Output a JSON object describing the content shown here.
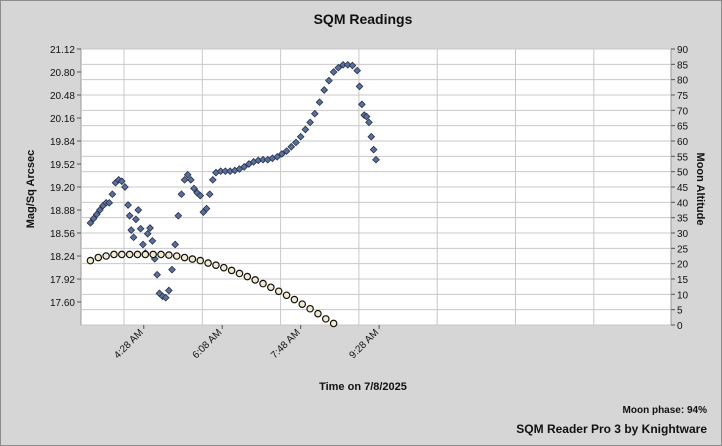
{
  "chart_data": {
    "type": "scatter",
    "title": "SQM Readings",
    "xlabel": "Time on 7/8/2025",
    "ylabel": "Mag/Sq Arcsec",
    "y2label": "Moon Altitude",
    "x_ticks": [
      "4:28 AM",
      "6:08 AM",
      "7:48 AM",
      "9:28 AM"
    ],
    "y_ticks": [
      "21.12",
      "20.80",
      "20.48",
      "20.16",
      "19.84",
      "19.52",
      "19.20",
      "18.88",
      "18.56",
      "18.24",
      "17.92",
      "17.60"
    ],
    "y2_ticks": [
      "90",
      "85",
      "80",
      "75",
      "70",
      "65",
      "60",
      "55",
      "50",
      "45",
      "40",
      "35",
      "30",
      "25",
      "20",
      "15",
      "10",
      "5",
      "0"
    ],
    "ylim": [
      17.28,
      21.12
    ],
    "y2lim": [
      0,
      90
    ],
    "x_unit": "minutes after midnight",
    "xlim": [
      188,
      940
    ],
    "grid": true,
    "series": [
      {
        "marker": "diamond",
        "color": "#5b6f9a",
        "axis": "left",
        "points": [
          [
            200,
            18.7
          ],
          [
            204,
            18.76
          ],
          [
            208,
            18.82
          ],
          [
            212,
            18.88
          ],
          [
            216,
            18.94
          ],
          [
            220,
            18.98
          ],
          [
            224,
            18.98
          ],
          [
            228,
            19.1
          ],
          [
            232,
            19.26
          ],
          [
            236,
            19.3
          ],
          [
            240,
            19.28
          ],
          [
            244,
            19.2
          ],
          [
            248,
            18.95
          ],
          [
            250,
            18.8
          ],
          [
            252,
            18.6
          ],
          [
            255,
            18.5
          ],
          [
            258,
            18.75
          ],
          [
            261,
            18.88
          ],
          [
            264,
            18.62
          ],
          [
            267,
            18.4
          ],
          [
            270,
            18.28
          ],
          [
            273,
            18.55
          ],
          [
            276,
            18.63
          ],
          [
            279,
            18.45
          ],
          [
            282,
            18.2
          ],
          [
            285,
            17.98
          ],
          [
            288,
            17.72
          ],
          [
            292,
            17.68
          ],
          [
            296,
            17.66
          ],
          [
            300,
            17.76
          ],
          [
            304,
            18.05
          ],
          [
            308,
            18.4
          ],
          [
            312,
            18.8
          ],
          [
            316,
            19.1
          ],
          [
            320,
            19.3
          ],
          [
            324,
            19.37
          ],
          [
            328,
            19.3
          ],
          [
            332,
            19.18
          ],
          [
            336,
            19.12
          ],
          [
            340,
            19.08
          ],
          [
            344,
            18.85
          ],
          [
            348,
            18.9
          ],
          [
            352,
            19.1
          ],
          [
            356,
            19.3
          ],
          [
            360,
            19.4
          ],
          [
            366,
            19.42
          ],
          [
            372,
            19.42
          ],
          [
            378,
            19.42
          ],
          [
            384,
            19.43
          ],
          [
            390,
            19.45
          ],
          [
            396,
            19.48
          ],
          [
            402,
            19.52
          ],
          [
            408,
            19.55
          ],
          [
            414,
            19.57
          ],
          [
            420,
            19.58
          ],
          [
            426,
            19.58
          ],
          [
            432,
            19.6
          ],
          [
            438,
            19.62
          ],
          [
            444,
            19.66
          ],
          [
            450,
            19.7
          ],
          [
            456,
            19.76
          ],
          [
            462,
            19.82
          ],
          [
            468,
            19.9
          ],
          [
            474,
            20.0
          ],
          [
            480,
            20.1
          ],
          [
            486,
            20.22
          ],
          [
            492,
            20.38
          ],
          [
            498,
            20.55
          ],
          [
            504,
            20.68
          ],
          [
            510,
            20.8
          ],
          [
            516,
            20.86
          ],
          [
            522,
            20.9
          ],
          [
            528,
            20.9
          ],
          [
            534,
            20.89
          ],
          [
            540,
            20.82
          ],
          [
            543,
            20.6
          ],
          [
            546,
            20.35
          ],
          [
            549,
            20.2
          ],
          [
            552,
            20.18
          ],
          [
            555,
            20.1
          ],
          [
            558,
            19.9
          ],
          [
            561,
            19.72
          ],
          [
            564,
            19.58
          ]
        ]
      },
      {
        "marker": "circle",
        "color": "#f3ead0",
        "axis": "right",
        "points": [
          [
            200,
            21
          ],
          [
            210,
            22
          ],
          [
            220,
            22.5
          ],
          [
            230,
            23
          ],
          [
            240,
            23
          ],
          [
            250,
            23
          ],
          [
            260,
            23
          ],
          [
            270,
            23
          ],
          [
            280,
            23
          ],
          [
            290,
            23
          ],
          [
            300,
            22.8
          ],
          [
            310,
            22.5
          ],
          [
            320,
            22
          ],
          [
            330,
            21.5
          ],
          [
            340,
            21
          ],
          [
            350,
            20.2
          ],
          [
            360,
            19.5
          ],
          [
            370,
            18.7
          ],
          [
            380,
            17.8
          ],
          [
            390,
            16.8
          ],
          [
            400,
            15.8
          ],
          [
            410,
            14.7
          ],
          [
            420,
            13.5
          ],
          [
            430,
            12.3
          ],
          [
            440,
            11
          ],
          [
            450,
            9.7
          ],
          [
            460,
            8.3
          ],
          [
            470,
            6.8
          ],
          [
            480,
            5.3
          ],
          [
            490,
            3.7
          ],
          [
            500,
            2
          ],
          [
            510,
            0.5
          ]
        ]
      }
    ],
    "moon_phase": "Moon phase: 94%",
    "credit": "SQM Reader Pro 3 by Knightware"
  }
}
